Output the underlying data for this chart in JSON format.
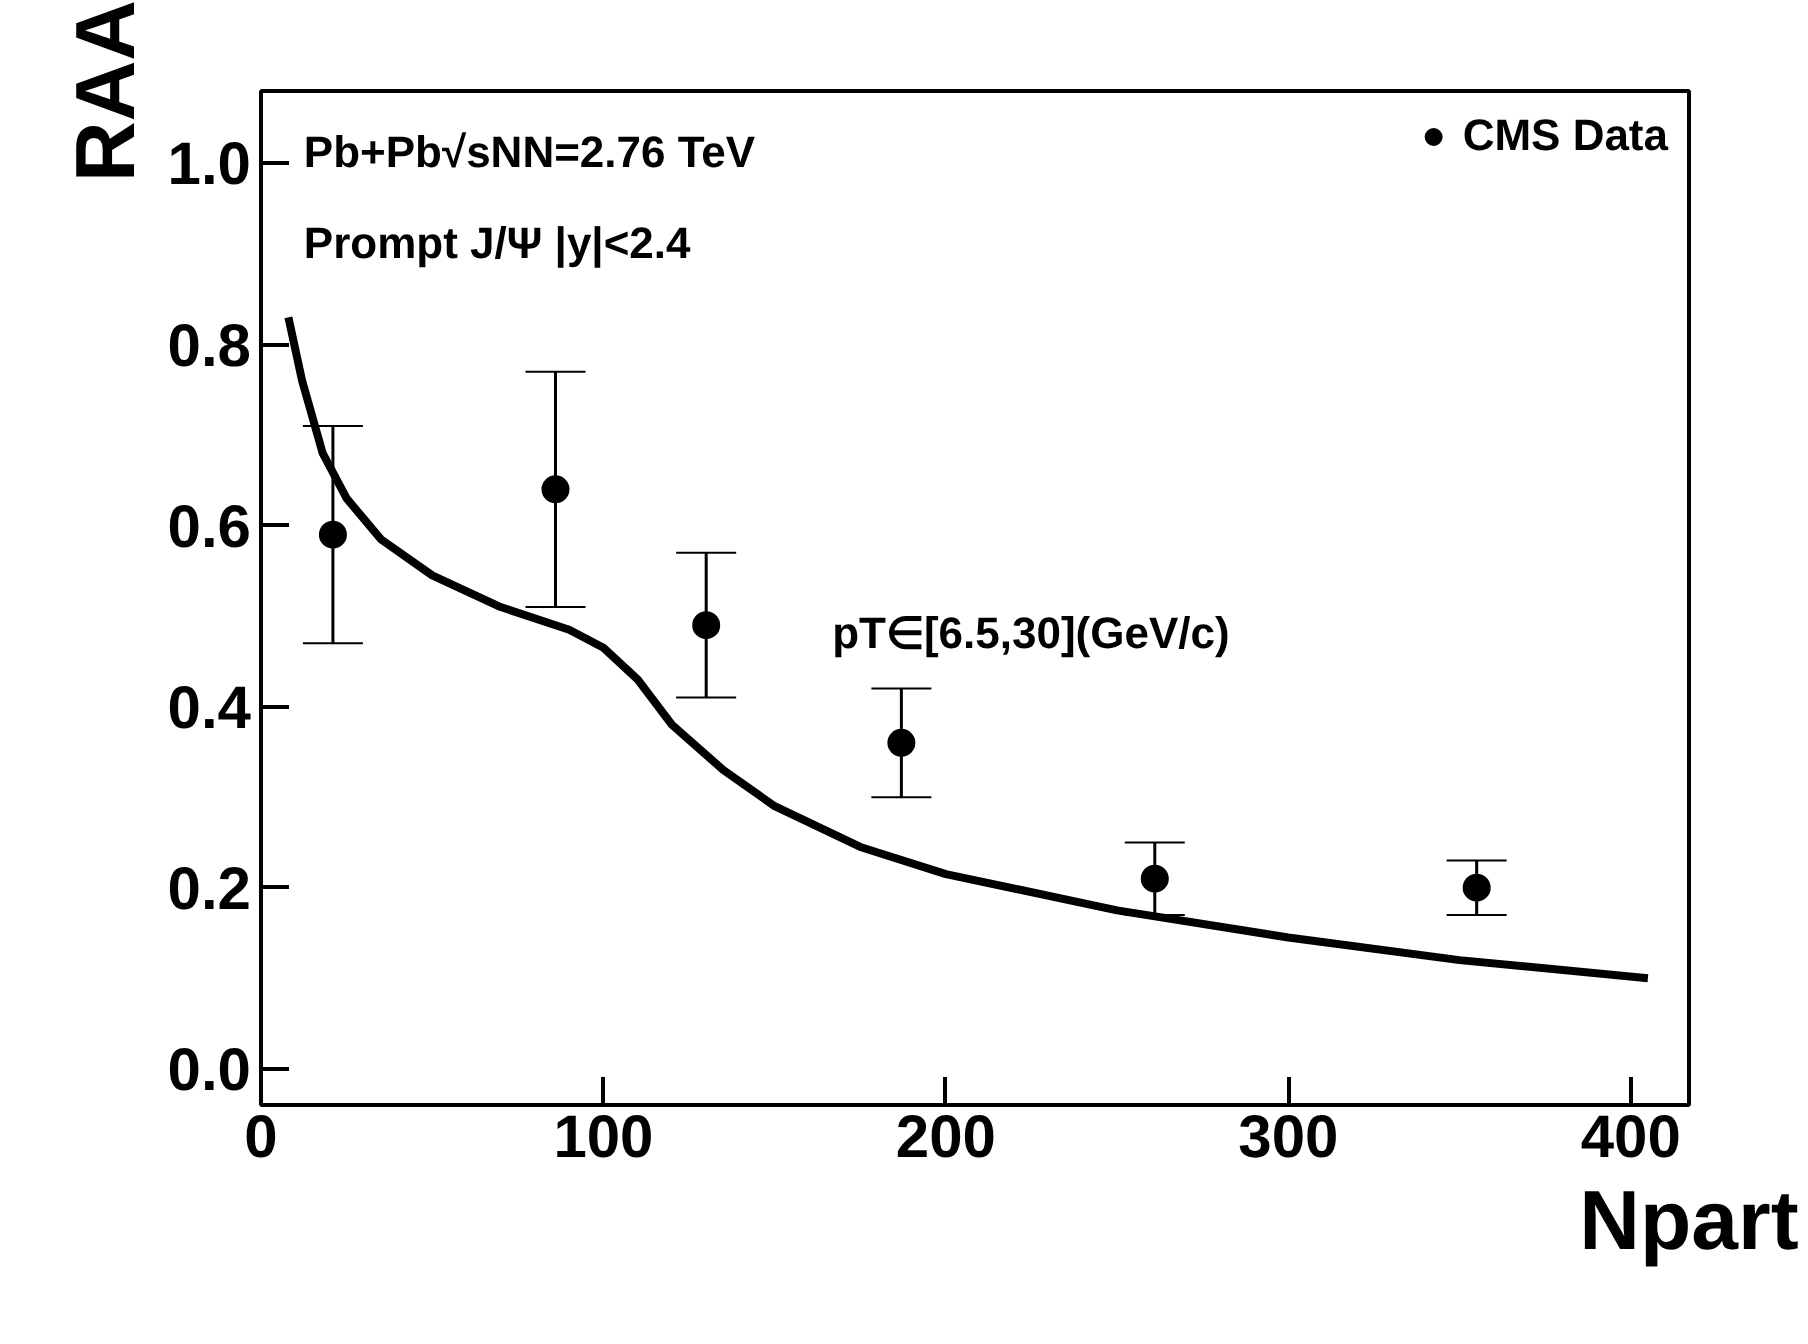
{
  "chart_data": {
    "type": "scatter",
    "xlabel": "Npart",
    "ylabel": "RAA",
    "annotations": [
      "Pb+Pb√sNN=2.76 TeV",
      "Prompt J/Ψ |y|<2.4",
      "pT∈[6.5,30](GeV/c)"
    ],
    "xlim": [
      0,
      417
    ],
    "ylim": [
      -0.04,
      1.08
    ],
    "xticks": [
      0,
      100,
      200,
      300,
      400
    ],
    "yticks": [
      {
        "value": 0,
        "label": "0.0"
      },
      0.2,
      0.4,
      0.6,
      0.8,
      {
        "value": 1,
        "label": "1.0"
      }
    ],
    "grid": false,
    "legend": "top right",
    "series": [
      {
        "name": "CMS Data",
        "marker": "circle",
        "color": "#000000",
        "x": [
          21,
          86,
          130,
          187,
          261,
          355
        ],
        "values": [
          0.59,
          0.64,
          0.49,
          0.36,
          0.21,
          0.2
        ],
        "errors": [
          [
            0.47,
            0.71
          ],
          [
            0.51,
            0.77
          ],
          [
            0.41,
            0.57
          ],
          [
            0.3,
            0.42
          ],
          [
            0.17,
            0.25
          ],
          [
            0.17,
            0.23
          ]
        ]
      },
      {
        "type": "line",
        "color": "#000000",
        "line_style": "solid",
        "x": [
          8,
          12,
          18,
          25,
          35,
          50,
          70,
          90,
          100,
          110,
          120,
          135,
          150,
          175,
          200,
          250,
          300,
          350,
          405
        ],
        "values": [
          0.83,
          0.76,
          0.68,
          0.63,
          0.585,
          0.545,
          0.51,
          0.485,
          0.465,
          0.43,
          0.38,
          0.33,
          0.29,
          0.245,
          0.215,
          0.175,
          0.145,
          0.12,
          0.1
        ]
      }
    ]
  }
}
